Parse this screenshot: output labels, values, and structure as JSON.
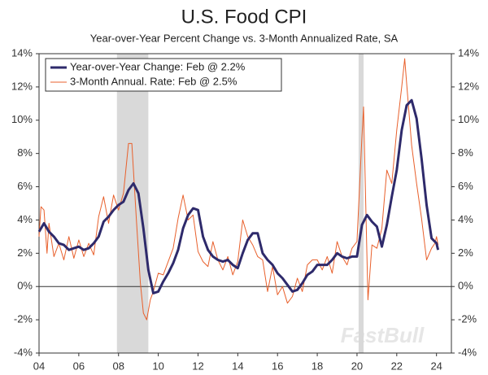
{
  "chart_data": {
    "type": "line",
    "title": "U.S. Food CPI",
    "subtitle": "Year-over-Year Percent Change vs. 3-Month Annualized Rate, SA",
    "watermark": "FastBull",
    "xlim": [
      2004,
      2024.75
    ],
    "xticks": [
      {
        "value": 2004,
        "label": "04"
      },
      {
        "value": 2006,
        "label": "06"
      },
      {
        "value": 2008,
        "label": "08"
      },
      {
        "value": 2010,
        "label": "10"
      },
      {
        "value": 2012,
        "label": "12"
      },
      {
        "value": 2014,
        "label": "14"
      },
      {
        "value": 2016,
        "label": "16"
      },
      {
        "value": 2018,
        "label": "18"
      },
      {
        "value": 2020,
        "label": "20"
      },
      {
        "value": 2022,
        "label": "22"
      },
      {
        "value": 2024,
        "label": "24"
      }
    ],
    "ylim": [
      -4,
      14
    ],
    "yticks": [
      {
        "value": -4,
        "label": "-4%"
      },
      {
        "value": -2,
        "label": "-2%"
      },
      {
        "value": 0,
        "label": "0%"
      },
      {
        "value": 2,
        "label": "2%"
      },
      {
        "value": 4,
        "label": "4%"
      },
      {
        "value": 6,
        "label": "6%"
      },
      {
        "value": 8,
        "label": "8%"
      },
      {
        "value": 10,
        "label": "10%"
      },
      {
        "value": 12,
        "label": "12%"
      },
      {
        "value": 14,
        "label": "14%"
      }
    ],
    "y2lim": [
      -4,
      14
    ],
    "y2ticks": [
      {
        "value": -4,
        "label": "-4%"
      },
      {
        "value": -2,
        "label": "-2%"
      },
      {
        "value": 0,
        "label": "0%"
      },
      {
        "value": 2,
        "label": "2%"
      },
      {
        "value": 4,
        "label": "4%"
      },
      {
        "value": 6,
        "label": "6%"
      },
      {
        "value": 8,
        "label": "8%"
      },
      {
        "value": 10,
        "label": "10%"
      },
      {
        "value": 12,
        "label": "12%"
      },
      {
        "value": 14,
        "label": "14%"
      }
    ],
    "shaded_periods": [
      [
        2007.92,
        2009.5
      ],
      [
        2020.08,
        2020.33
      ]
    ],
    "legend": "upper left",
    "series": [
      {
        "name": "Year-over-Year Change: Feb @ 2.2%",
        "color": "#2e2a6b",
        "width": 3,
        "x": [
          2004.0,
          2004.25,
          2004.5,
          2004.75,
          2005.0,
          2005.25,
          2005.5,
          2005.75,
          2006.0,
          2006.25,
          2006.5,
          2006.75,
          2007.0,
          2007.25,
          2007.5,
          2007.75,
          2008.0,
          2008.25,
          2008.5,
          2008.75,
          2009.0,
          2009.25,
          2009.5,
          2009.75,
          2010.0,
          2010.25,
          2010.5,
          2010.75,
          2011.0,
          2011.25,
          2011.5,
          2011.75,
          2012.0,
          2012.25,
          2012.5,
          2012.75,
          2013.0,
          2013.25,
          2013.5,
          2013.75,
          2014.0,
          2014.25,
          2014.5,
          2014.75,
          2015.0,
          2015.25,
          2015.5,
          2015.75,
          2016.0,
          2016.25,
          2016.5,
          2016.75,
          2017.0,
          2017.25,
          2017.5,
          2017.75,
          2018.0,
          2018.25,
          2018.5,
          2018.75,
          2019.0,
          2019.25,
          2019.5,
          2019.75,
          2020.0,
          2020.25,
          2020.5,
          2020.75,
          2021.0,
          2021.25,
          2021.5,
          2021.75,
          2022.0,
          2022.25,
          2022.5,
          2022.75,
          2023.0,
          2023.25,
          2023.5,
          2023.75,
          2024.0,
          2024.08
        ],
        "values": [
          3.3,
          3.8,
          3.3,
          3.0,
          2.6,
          2.5,
          2.2,
          2.3,
          2.4,
          2.2,
          2.3,
          2.6,
          3.0,
          3.9,
          4.2,
          4.6,
          4.9,
          5.1,
          5.8,
          6.2,
          5.6,
          3.5,
          1.0,
          -0.4,
          -0.3,
          0.3,
          0.8,
          1.4,
          2.2,
          3.5,
          4.3,
          4.7,
          4.6,
          3.0,
          2.2,
          1.8,
          1.6,
          1.5,
          1.6,
          1.3,
          1.1,
          2.0,
          2.8,
          3.2,
          3.2,
          2.0,
          1.6,
          1.3,
          0.8,
          0.5,
          0.1,
          -0.3,
          -0.2,
          0.2,
          0.7,
          0.9,
          1.3,
          1.3,
          1.3,
          1.6,
          2.0,
          1.8,
          1.7,
          1.8,
          1.8,
          3.7,
          4.3,
          3.9,
          3.6,
          2.4,
          3.7,
          5.4,
          7.0,
          9.4,
          10.9,
          11.2,
          10.1,
          7.7,
          4.9,
          2.9,
          2.6,
          2.2
        ]
      },
      {
        "name": "3-Month Annual. Rate: Feb @ 2.5%",
        "color": "#e8602c",
        "width": 1,
        "x": [
          2004.0,
          2004.1,
          2004.25,
          2004.4,
          2004.5,
          2004.75,
          2005.0,
          2005.25,
          2005.5,
          2005.75,
          2006.0,
          2006.25,
          2006.5,
          2006.75,
          2007.0,
          2007.25,
          2007.5,
          2007.75,
          2008.0,
          2008.25,
          2008.5,
          2008.67,
          2008.9,
          2009.1,
          2009.25,
          2009.42,
          2009.6,
          2009.75,
          2010.0,
          2010.25,
          2010.5,
          2010.75,
          2011.0,
          2011.25,
          2011.5,
          2011.75,
          2012.0,
          2012.25,
          2012.5,
          2012.75,
          2013.0,
          2013.25,
          2013.5,
          2013.75,
          2014.0,
          2014.25,
          2014.5,
          2014.75,
          2015.0,
          2015.25,
          2015.5,
          2015.75,
          2016.0,
          2016.25,
          2016.5,
          2016.75,
          2017.0,
          2017.25,
          2017.5,
          2017.75,
          2018.0,
          2018.25,
          2018.5,
          2018.75,
          2019.0,
          2019.25,
          2019.5,
          2019.75,
          2020.0,
          2020.25,
          2020.33,
          2020.45,
          2020.55,
          2020.75,
          2021.0,
          2021.25,
          2021.5,
          2021.75,
          2022.0,
          2022.25,
          2022.4,
          2022.5,
          2022.75,
          2023.0,
          2023.25,
          2023.5,
          2023.75,
          2023.92,
          2024.0,
          2024.08
        ],
        "values": [
          3.0,
          4.8,
          4.6,
          2.0,
          3.8,
          1.8,
          2.6,
          1.6,
          3.0,
          1.7,
          2.8,
          1.8,
          2.6,
          1.9,
          4.2,
          5.4,
          3.8,
          5.5,
          4.6,
          5.6,
          8.6,
          8.6,
          4.0,
          0.2,
          -1.6,
          -2.0,
          -0.8,
          -0.3,
          0.8,
          0.7,
          1.5,
          2.3,
          4.1,
          5.5,
          4.0,
          4.3,
          2.1,
          1.5,
          1.2,
          2.7,
          1.6,
          1.0,
          1.8,
          0.7,
          1.5,
          4.0,
          3.0,
          2.5,
          1.8,
          1.6,
          -0.3,
          1.2,
          -0.5,
          0.0,
          -1.0,
          -0.6,
          0.5,
          -0.3,
          1.3,
          1.6,
          1.6,
          1.0,
          1.8,
          0.8,
          2.7,
          1.8,
          1.3,
          2.3,
          2.7,
          9.0,
          10.8,
          4.5,
          -0.8,
          2.5,
          2.3,
          3.5,
          7.0,
          6.2,
          9.4,
          12.0,
          13.7,
          12.2,
          8.5,
          6.2,
          4.1,
          1.6,
          2.3,
          2.6,
          3.0,
          2.5
        ]
      }
    ]
  }
}
